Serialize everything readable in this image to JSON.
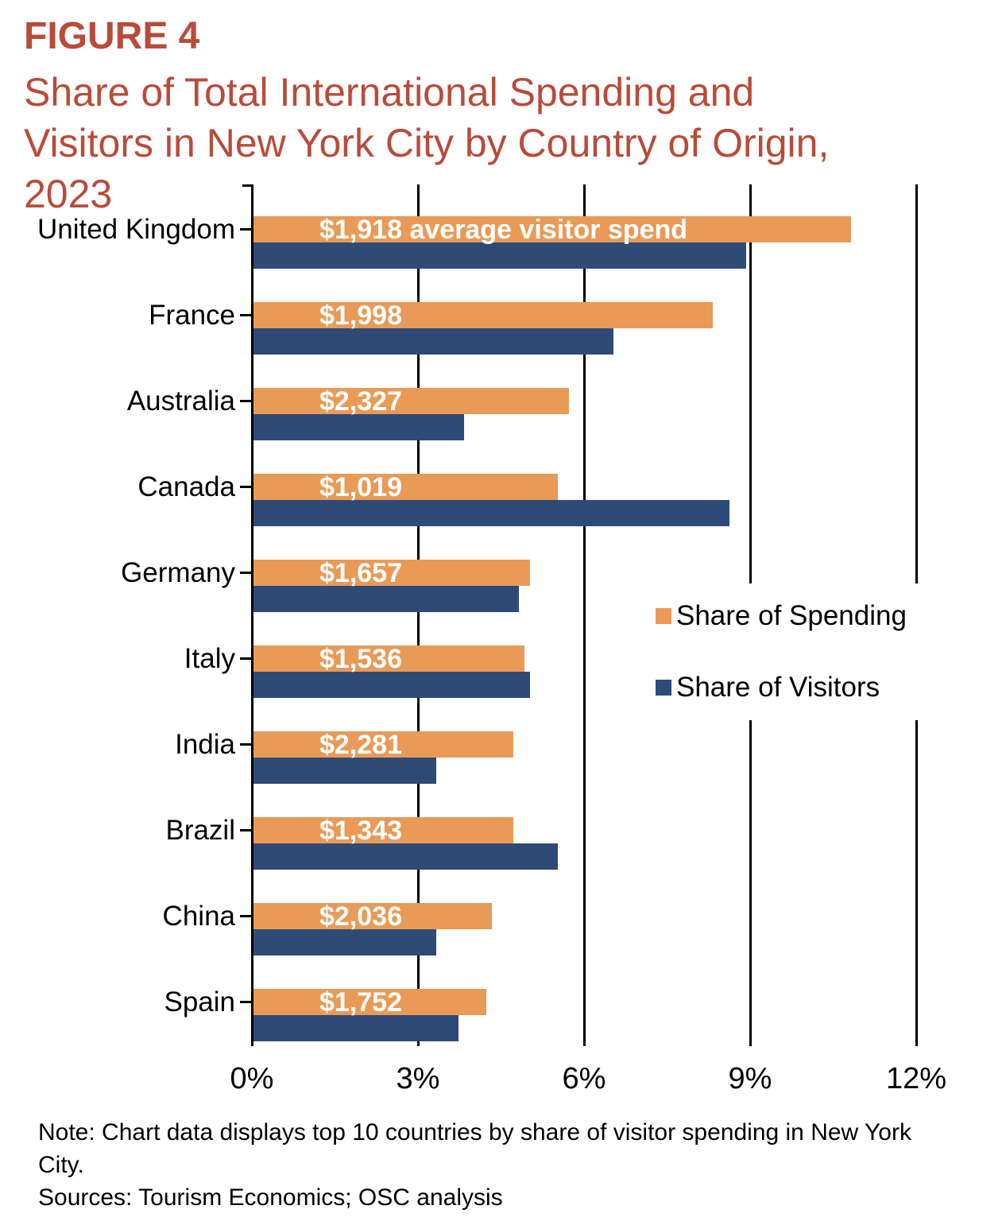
{
  "figure": {
    "label": "FIGURE 4",
    "title_lines": [
      "Share of Total International Spending and",
      "Visitors in New York City by Country of Origin,",
      "2023"
    ]
  },
  "legend": {
    "spending_label": "Share of Spending",
    "visitors_label": "Share of Visitors"
  },
  "notes": {
    "note": "Note: Chart data displays top 10 countries by share of visitor spending in New York City.",
    "sources": "Sources: Tourism Economics; OSC analysis"
  },
  "colors": {
    "spending_orange": "#E99A57",
    "visitors_navy": "#2E4B78",
    "title_red": "#B94B39",
    "axis_black": "#000000",
    "bar_value_text": "#FFFFFF"
  },
  "chart_data": {
    "type": "bar",
    "orientation": "horizontal",
    "categories": [
      "United Kingdom",
      "France",
      "Australia",
      "Canada",
      "Germany",
      "Italy",
      "India",
      "Brazil",
      "China",
      "Spain"
    ],
    "series": [
      {
        "name": "Share of Spending",
        "color": "#E99A57",
        "values": [
          10.8,
          8.3,
          5.7,
          5.5,
          5.0,
          4.9,
          4.7,
          4.7,
          4.3,
          4.2
        ]
      },
      {
        "name": "Share of Visitors",
        "color": "#2E4B78",
        "values": [
          8.9,
          6.5,
          3.8,
          8.6,
          4.8,
          5.0,
          3.3,
          5.5,
          3.3,
          3.7
        ]
      }
    ],
    "bar_value_labels": [
      "$1,918 average visitor spend",
      "$1,998",
      "$2,327",
      "$1,019",
      "$1,657",
      "$1,536",
      "$2,281",
      "$1,343",
      "$2,036",
      "$1,752"
    ],
    "x_ticks": [
      "0%",
      "3%",
      "6%",
      "9%",
      "12%"
    ],
    "xlim": [
      0,
      12
    ],
    "xlabel": "",
    "ylabel": "",
    "grid": true,
    "legend_position": "middle-right"
  }
}
